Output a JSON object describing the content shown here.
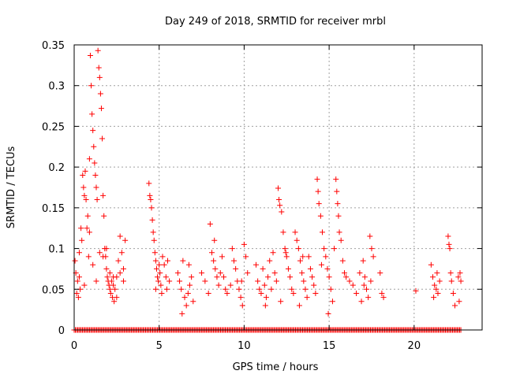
{
  "chart_data": {
    "type": "scatter",
    "title": "Day 249 of 2018, SRMTID for receiver mrbl",
    "xlabel": "GPS time / hours",
    "ylabel": "SRMTID / TECUs",
    "xlim": [
      0,
      24
    ],
    "ylim": [
      0,
      0.35
    ],
    "x_ticks": [
      0,
      5,
      10,
      15,
      20
    ],
    "x_tick_labels": [
      "0",
      "5",
      "10",
      "15",
      "20"
    ],
    "y_ticks": [
      0,
      0.05,
      0.1,
      0.15,
      0.2,
      0.25,
      0.3,
      0.35
    ],
    "y_tick_labels": [
      "0",
      "0.05",
      "0.1",
      "0.15",
      "0.2",
      "0.25",
      "0.3",
      "0.35"
    ],
    "grid": true,
    "marker": "plus",
    "color": "#ff0000",
    "zero_band": [
      [
        0.0,
        22.8
      ]
    ],
    "series": [
      {
        "name": "SRMTID",
        "points": [
          [
            0.05,
            0.085
          ],
          [
            0.1,
            0.07
          ],
          [
            0.15,
            0.045
          ],
          [
            0.2,
            0.06
          ],
          [
            0.25,
            0.04
          ],
          [
            0.3,
            0.095
          ],
          [
            0.35,
            0.05
          ],
          [
            0.4,
            0.125
          ],
          [
            0.45,
            0.11
          ],
          [
            0.5,
            0.19
          ],
          [
            0.55,
            0.175
          ],
          [
            0.6,
            0.165
          ],
          [
            0.65,
            0.195
          ],
          [
            0.7,
            0.16
          ],
          [
            0.75,
            0.125
          ],
          [
            0.8,
            0.14
          ],
          [
            0.85,
            0.09
          ],
          [
            0.9,
            0.21
          ],
          [
            0.95,
            0.337
          ],
          [
            1.0,
            0.3
          ],
          [
            1.05,
            0.265
          ],
          [
            1.1,
            0.245
          ],
          [
            1.15,
            0.225
          ],
          [
            1.2,
            0.205
          ],
          [
            1.25,
            0.19
          ],
          [
            1.3,
            0.175
          ],
          [
            1.35,
            0.16
          ],
          [
            1.4,
            0.343
          ],
          [
            1.45,
            0.322
          ],
          [
            1.5,
            0.31
          ],
          [
            1.55,
            0.29
          ],
          [
            1.6,
            0.272
          ],
          [
            1.65,
            0.235
          ],
          [
            1.7,
            0.165
          ],
          [
            1.75,
            0.14
          ],
          [
            1.8,
            0.1
          ],
          [
            1.85,
            0.09
          ],
          [
            1.9,
            0.075
          ],
          [
            1.95,
            0.065
          ],
          [
            2.0,
            0.06
          ],
          [
            2.05,
            0.055
          ],
          [
            2.1,
            0.05
          ],
          [
            2.15,
            0.045
          ],
          [
            2.2,
            0.06
          ],
          [
            2.25,
            0.04
          ],
          [
            2.3,
            0.055
          ],
          [
            2.35,
            0.035
          ],
          [
            2.4,
            0.05
          ],
          [
            2.5,
            0.065
          ],
          [
            2.6,
            0.085
          ],
          [
            2.7,
            0.115
          ],
          [
            2.8,
            0.095
          ],
          [
            2.9,
            0.075
          ],
          [
            3.0,
            0.11
          ],
          [
            0.3,
            0.065
          ],
          [
            0.6,
            0.055
          ],
          [
            0.9,
            0.12
          ],
          [
            1.1,
            0.08
          ],
          [
            1.3,
            0.06
          ],
          [
            1.5,
            0.095
          ],
          [
            1.7,
            0.09
          ],
          [
            1.9,
            0.1
          ],
          [
            2.1,
            0.07
          ],
          [
            2.3,
            0.065
          ],
          [
            2.5,
            0.04
          ],
          [
            2.7,
            0.07
          ],
          [
            2.9,
            0.06
          ],
          [
            4.4,
            0.18
          ],
          [
            4.45,
            0.165
          ],
          [
            4.5,
            0.16
          ],
          [
            4.55,
            0.15
          ],
          [
            4.6,
            0.135
          ],
          [
            4.65,
            0.12
          ],
          [
            4.7,
            0.11
          ],
          [
            4.75,
            0.095
          ],
          [
            4.8,
            0.085
          ],
          [
            4.85,
            0.075
          ],
          [
            4.9,
            0.065
          ],
          [
            4.95,
            0.06
          ],
          [
            5.0,
            0.08
          ],
          [
            5.05,
            0.07
          ],
          [
            5.1,
            0.055
          ],
          [
            5.2,
            0.09
          ],
          [
            5.3,
            0.08
          ],
          [
            5.4,
            0.065
          ],
          [
            5.5,
            0.085
          ],
          [
            5.6,
            0.06
          ],
          [
            4.8,
            0.05
          ],
          [
            5.15,
            0.045
          ],
          [
            5.45,
            0.05
          ],
          [
            6.1,
            0.07
          ],
          [
            6.2,
            0.06
          ],
          [
            6.3,
            0.05
          ],
          [
            6.4,
            0.085
          ],
          [
            6.5,
            0.04
          ],
          [
            6.6,
            0.03
          ],
          [
            6.7,
            0.045
          ],
          [
            6.8,
            0.055
          ],
          [
            6.9,
            0.065
          ],
          [
            7.0,
            0.035
          ],
          [
            6.35,
            0.02
          ],
          [
            6.75,
            0.08
          ],
          [
            7.5,
            0.07
          ],
          [
            7.7,
            0.06
          ],
          [
            7.9,
            0.045
          ],
          [
            8.0,
            0.13
          ],
          [
            8.1,
            0.095
          ],
          [
            8.2,
            0.085
          ],
          [
            8.3,
            0.075
          ],
          [
            8.4,
            0.065
          ],
          [
            8.5,
            0.055
          ],
          [
            8.6,
            0.07
          ],
          [
            8.7,
            0.09
          ],
          [
            8.8,
            0.065
          ],
          [
            8.9,
            0.05
          ],
          [
            9.0,
            0.045
          ],
          [
            9.2,
            0.055
          ],
          [
            9.4,
            0.085
          ],
          [
            9.5,
            0.075
          ],
          [
            9.6,
            0.06
          ],
          [
            9.7,
            0.05
          ],
          [
            9.8,
            0.04
          ],
          [
            9.9,
            0.03
          ],
          [
            10.0,
            0.105
          ],
          [
            10.1,
            0.09
          ],
          [
            10.2,
            0.07
          ],
          [
            8.25,
            0.11
          ],
          [
            9.3,
            0.1
          ],
          [
            9.85,
            0.06
          ],
          [
            10.7,
            0.08
          ],
          [
            10.8,
            0.06
          ],
          [
            10.9,
            0.05
          ],
          [
            11.0,
            0.045
          ],
          [
            11.1,
            0.075
          ],
          [
            11.2,
            0.055
          ],
          [
            11.3,
            0.04
          ],
          [
            11.4,
            0.065
          ],
          [
            11.5,
            0.085
          ],
          [
            11.6,
            0.05
          ],
          [
            11.7,
            0.095
          ],
          [
            11.8,
            0.07
          ],
          [
            11.9,
            0.06
          ],
          [
            12.0,
            0.174
          ],
          [
            12.05,
            0.16
          ],
          [
            12.1,
            0.153
          ],
          [
            12.2,
            0.145
          ],
          [
            12.3,
            0.12
          ],
          [
            12.4,
            0.1
          ],
          [
            12.5,
            0.09
          ],
          [
            12.6,
            0.075
          ],
          [
            12.7,
            0.065
          ],
          [
            12.8,
            0.05
          ],
          [
            12.9,
            0.045
          ],
          [
            13.0,
            0.12
          ],
          [
            13.1,
            0.11
          ],
          [
            13.2,
            0.1
          ],
          [
            13.3,
            0.085
          ],
          [
            13.4,
            0.07
          ],
          [
            13.5,
            0.06
          ],
          [
            13.6,
            0.05
          ],
          [
            13.7,
            0.04
          ],
          [
            13.8,
            0.09
          ],
          [
            13.9,
            0.075
          ],
          [
            14.0,
            0.065
          ],
          [
            14.1,
            0.055
          ],
          [
            14.2,
            0.045
          ],
          [
            14.3,
            0.185
          ],
          [
            14.35,
            0.17
          ],
          [
            14.4,
            0.155
          ],
          [
            14.5,
            0.14
          ],
          [
            14.6,
            0.12
          ],
          [
            14.7,
            0.1
          ],
          [
            14.8,
            0.09
          ],
          [
            14.9,
            0.075
          ],
          [
            15.0,
            0.065
          ],
          [
            15.1,
            0.05
          ],
          [
            15.2,
            0.035
          ],
          [
            15.3,
            0.1
          ],
          [
            15.4,
            0.185
          ],
          [
            15.45,
            0.17
          ],
          [
            15.5,
            0.155
          ],
          [
            15.55,
            0.14
          ],
          [
            15.6,
            0.12
          ],
          [
            15.7,
            0.11
          ],
          [
            15.8,
            0.085
          ],
          [
            15.9,
            0.07
          ],
          [
            14.95,
            0.02
          ],
          [
            13.25,
            0.03
          ],
          [
            12.15,
            0.035
          ],
          [
            11.25,
            0.03
          ],
          [
            12.45,
            0.095
          ],
          [
            13.45,
            0.09
          ],
          [
            14.55,
            0.08
          ],
          [
            16.0,
            0.065
          ],
          [
            16.2,
            0.06
          ],
          [
            16.4,
            0.055
          ],
          [
            16.6,
            0.045
          ],
          [
            16.8,
            0.07
          ],
          [
            17.0,
            0.085
          ],
          [
            17.1,
            0.065
          ],
          [
            17.2,
            0.05
          ],
          [
            17.3,
            0.04
          ],
          [
            17.4,
            0.115
          ],
          [
            17.5,
            0.1
          ],
          [
            17.6,
            0.09
          ],
          [
            18.0,
            0.07
          ],
          [
            18.1,
            0.045
          ],
          [
            18.2,
            0.04
          ],
          [
            16.9,
            0.035
          ],
          [
            17.05,
            0.055
          ],
          [
            17.45,
            0.06
          ],
          [
            20.1,
            0.048
          ],
          [
            21.0,
            0.08
          ],
          [
            21.1,
            0.065
          ],
          [
            21.2,
            0.055
          ],
          [
            21.3,
            0.05
          ],
          [
            21.4,
            0.045
          ],
          [
            21.5,
            0.06
          ],
          [
            21.15,
            0.04
          ],
          [
            21.35,
            0.07
          ],
          [
            22.0,
            0.115
          ],
          [
            22.05,
            0.105
          ],
          [
            22.1,
            0.1
          ],
          [
            22.15,
            0.07
          ],
          [
            22.2,
            0.06
          ],
          [
            22.3,
            0.045
          ],
          [
            22.4,
            0.03
          ],
          [
            22.6,
            0.065
          ],
          [
            22.7,
            0.07
          ],
          [
            22.75,
            0.06
          ],
          [
            22.65,
            0.035
          ]
        ]
      }
    ]
  }
}
